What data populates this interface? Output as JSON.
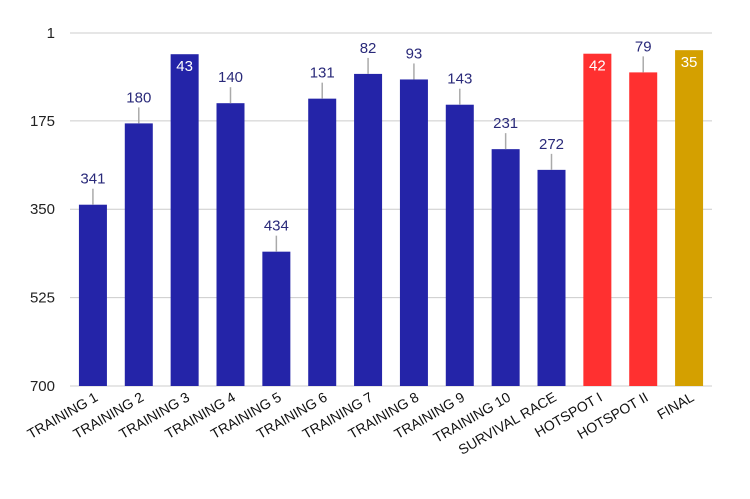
{
  "chart_data": {
    "type": "bar",
    "title": "",
    "xlabel": "",
    "ylabel": "",
    "y_reversed": true,
    "ylim": [
      1,
      700
    ],
    "yticks": [
      1,
      175,
      350,
      525,
      700
    ],
    "grid": true,
    "legend": "none",
    "categories": [
      "TRAINING 1",
      "TRAINING 2",
      "TRAINING 3",
      "TRAINING 4",
      "TRAINING 5",
      "TRAINING 6",
      "TRAINING 7",
      "TRAINING 8",
      "TRAINING 9",
      "TRAINING 10",
      "SURVIVAL RACE",
      "HOTSPOT I",
      "HOTSPOT II",
      "FINAL"
    ],
    "values": [
      341,
      180,
      43,
      140,
      434,
      131,
      82,
      93,
      143,
      231,
      272,
      42,
      79,
      35
    ],
    "colors": [
      "#2424a8",
      "#2424a8",
      "#2424a8",
      "#2424a8",
      "#2424a8",
      "#2424a8",
      "#2424a8",
      "#2424a8",
      "#2424a8",
      "#2424a8",
      "#2424a8",
      "#ff3030",
      "#ff3030",
      "#d4a000"
    ]
  },
  "colors": {
    "grid": "#cccccc",
    "label_dark": "#2a2a7a",
    "label_inside": "#ffffff"
  }
}
